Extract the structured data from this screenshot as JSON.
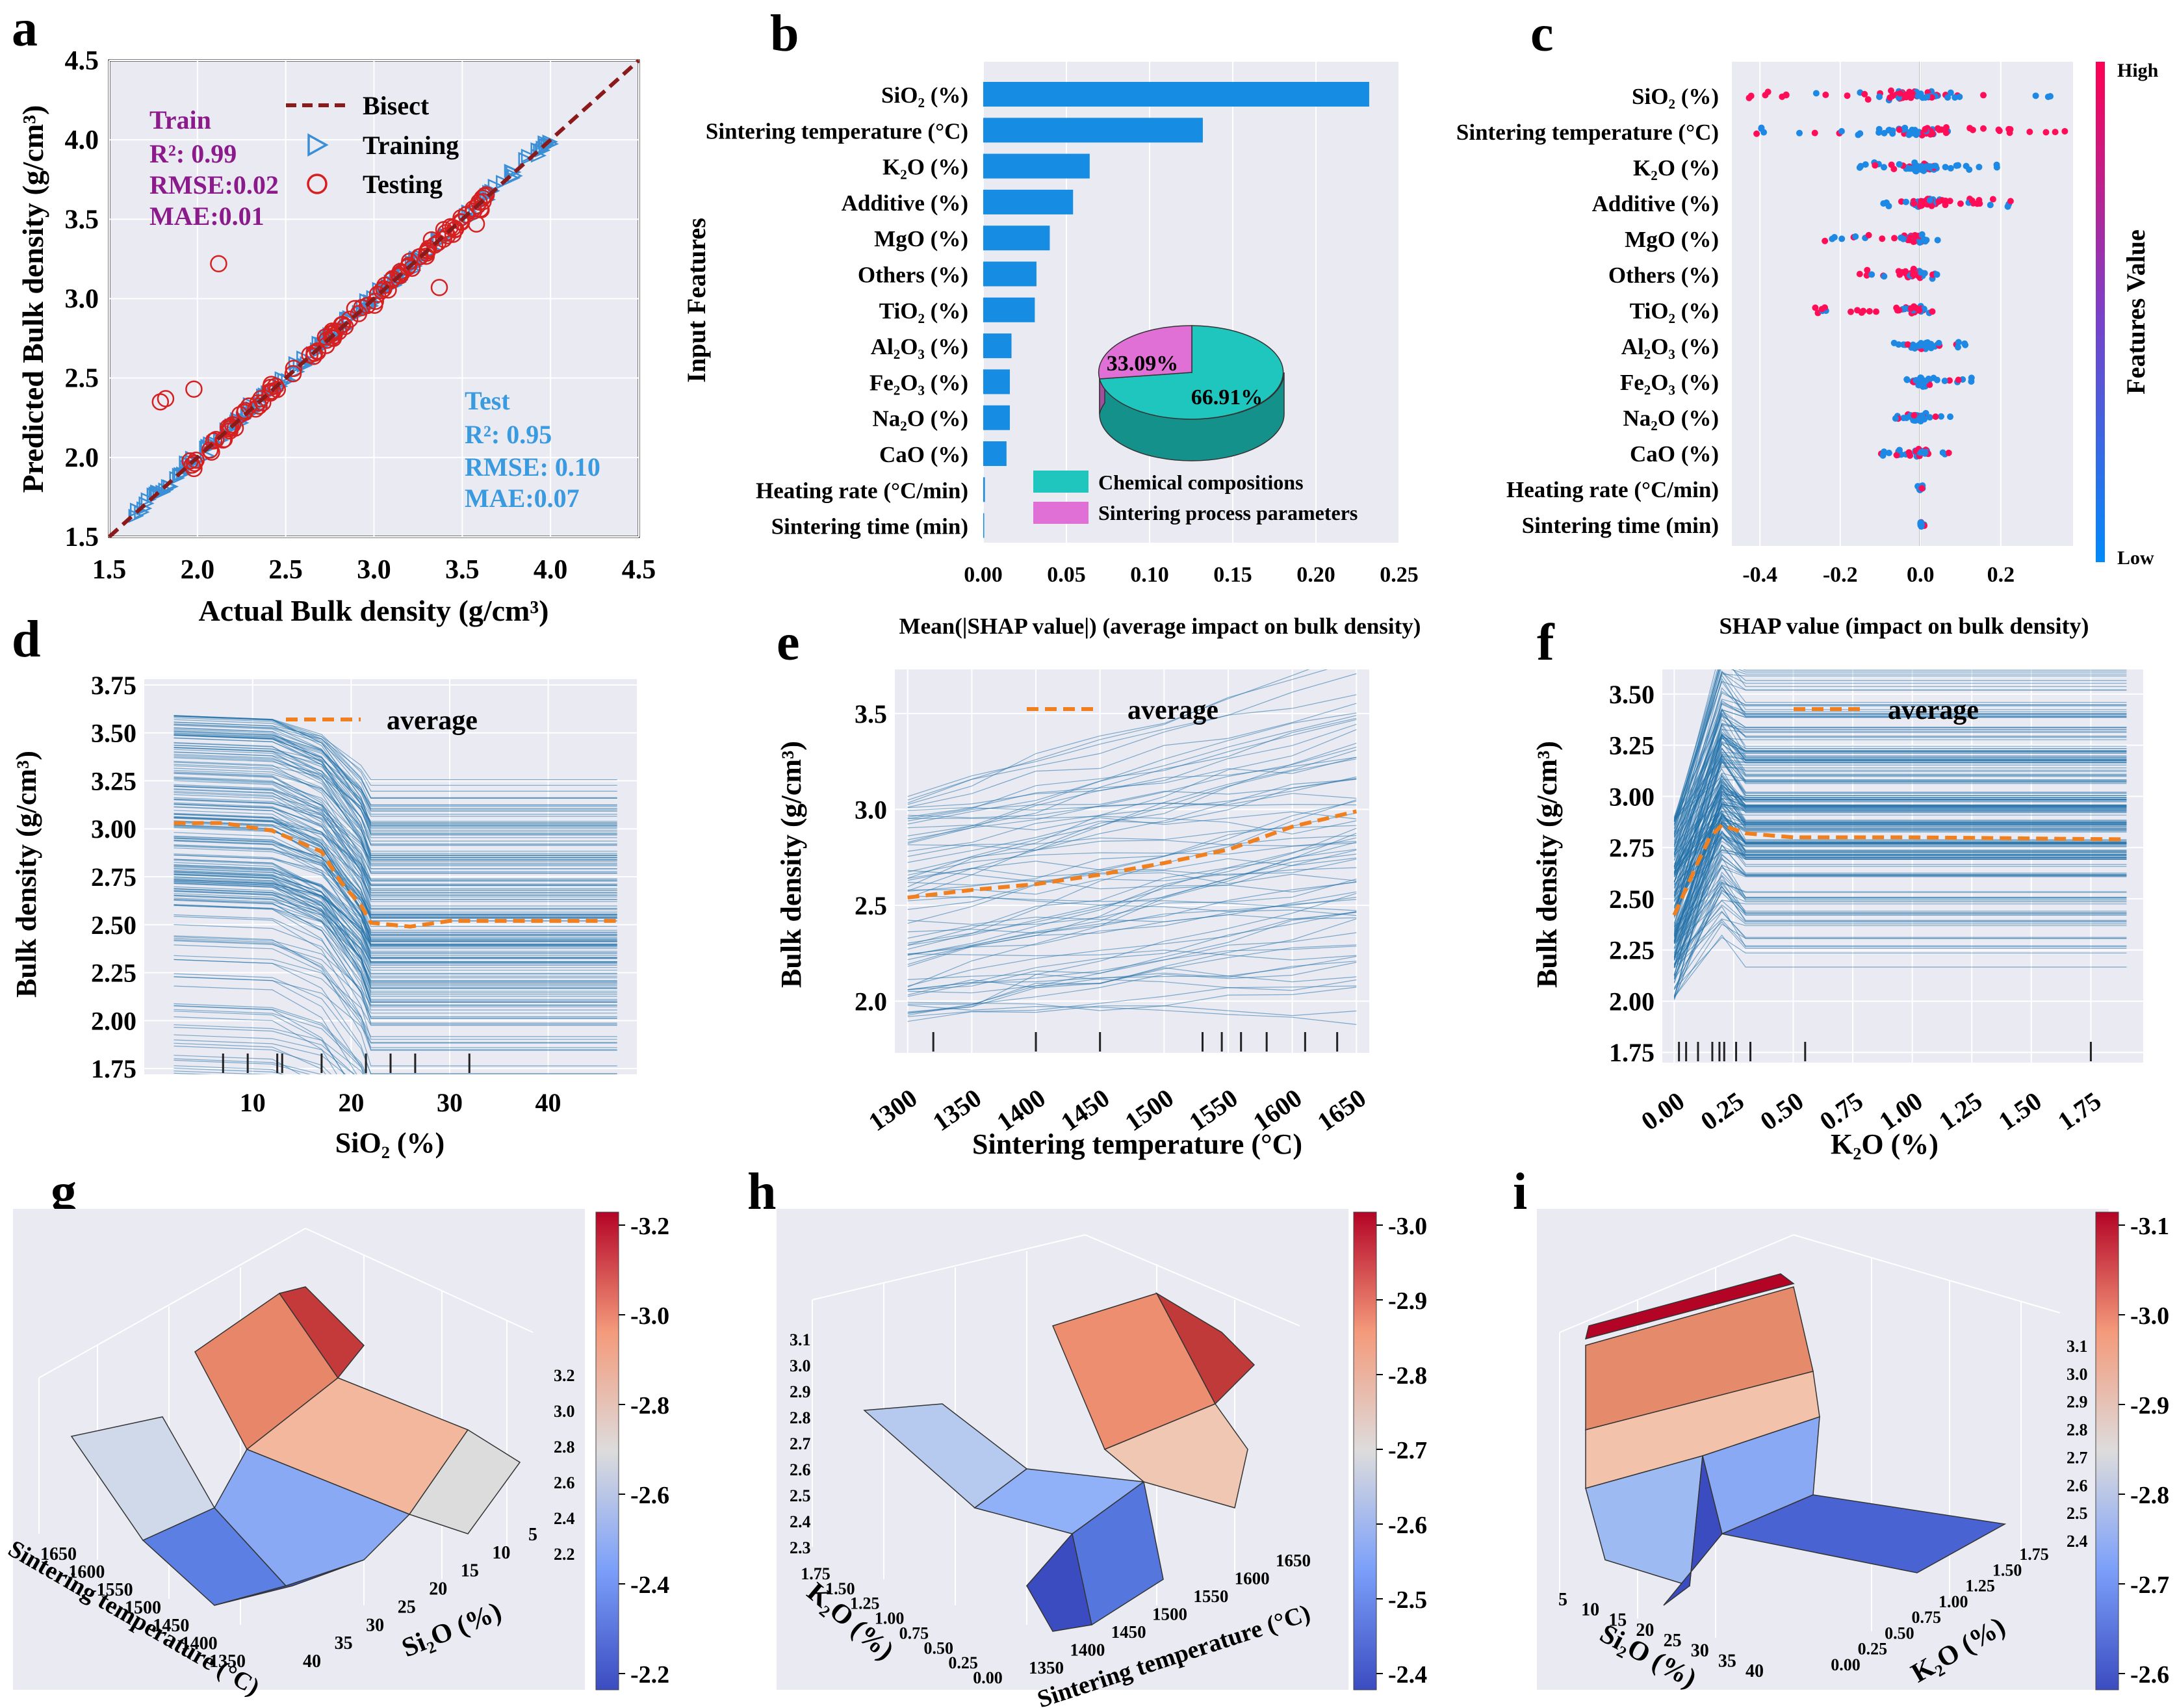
{
  "chart_data": [
    {
      "panel": "a",
      "type": "scatter",
      "xlabel": "Actual Bulk density (g/cm³)",
      "ylabel": "Predicted Bulk density (g/cm³)",
      "xlim": [
        1.5,
        4.5
      ],
      "ylim": [
        1.5,
        4.5
      ],
      "ticks": [
        "1.5",
        "2.0",
        "2.5",
        "3.0",
        "3.5",
        "4.0",
        "4.5"
      ],
      "legend": [
        "Bisect",
        "Training",
        "Testing"
      ],
      "train_text": [
        "Train",
        "R²: 0.99",
        "RMSE:0.02",
        "MAE:0.01"
      ],
      "test_text": [
        "Test",
        "R²: 0.95",
        "RMSE: 0.10",
        "MAE:0.07"
      ],
      "outliers": [
        [
          2.12,
          3.22
        ],
        [
          1.82,
          2.37
        ],
        [
          1.79,
          2.35
        ],
        [
          1.98,
          2.43
        ],
        [
          3.37,
          3.07
        ],
        [
          3.58,
          3.47
        ],
        [
          1.98,
          1.93
        ]
      ]
    },
    {
      "panel": "b",
      "type": "bar",
      "xlabel": "Mean(|SHAP value|) (average impact on bulk density)",
      "ylabel": "Input Features",
      "categories": [
        "SiO₂ (%)",
        "Sintering temperature (°C)",
        "K₂O (%)",
        "Additive (%)",
        "MgO (%)",
        "Others (%)",
        "TiO₂ (%)",
        "Al₂O₃ (%)",
        "Fe₂O₃ (%)",
        "Na₂O (%)",
        "CaO (%)",
        "Heating rate (°C/min)",
        "Sintering time (min)"
      ],
      "values": [
        0.232,
        0.132,
        0.064,
        0.054,
        0.04,
        0.032,
        0.031,
        0.017,
        0.016,
        0.016,
        0.014,
        0.001,
        0.0
      ],
      "xlim": [
        0,
        0.25
      ],
      "ticks": [
        "0.00",
        "0.05",
        "0.10",
        "0.15",
        "0.20",
        "0.25"
      ],
      "pie": [
        {
          "label": "Chemical compositions",
          "value": 66.91,
          "text": "66.91%",
          "color": "#1fc6bd"
        },
        {
          "label": "Sintering process parameters",
          "value": 33.09,
          "text": "33.09%",
          "color": "#e06fd6"
        }
      ]
    },
    {
      "panel": "c",
      "type": "scatter",
      "subtype": "beeswarm",
      "xlabel": "SHAP value (impact on bulk density)",
      "features": [
        "SiO₂ (%)",
        "Sintering temperature (°C)",
        "K₂O (%)",
        "Additive (%)",
        "MgO (%)",
        "Others (%)",
        "TiO₂ (%)",
        "Al₂O₃ (%)",
        "Fe₂O₃ (%)",
        "Na₂O (%)",
        "CaO (%)",
        "Heating rate (°C/min)",
        "Sintering time (min)"
      ],
      "spread": [
        [
          -0.45,
          0.33
        ],
        [
          -0.43,
          0.36
        ],
        [
          -0.17,
          0.2
        ],
        [
          -0.1,
          0.23
        ],
        [
          -0.24,
          0.06
        ],
        [
          -0.16,
          0.05
        ],
        [
          -0.27,
          0.05
        ],
        [
          -0.07,
          0.12
        ],
        [
          -0.07,
          0.13
        ],
        [
          -0.07,
          0.08
        ],
        [
          -0.1,
          0.08
        ],
        [
          -0.01,
          0.02
        ],
        [
          0.0,
          0.01
        ]
      ],
      "xlim": [
        -0.47,
        0.38
      ],
      "ticks": [
        "-0.4",
        "-0.2",
        "0.0",
        "0.2"
      ],
      "colorbar": {
        "label": "Features Value",
        "high": "High",
        "low": "Low"
      }
    },
    {
      "panel": "d",
      "type": "line",
      "xlabel": "SiO₂ (%)",
      "ylabel": "Bulk density (g/cm³)",
      "legend": "average",
      "x": [
        2,
        7,
        12,
        17,
        19,
        21,
        22,
        26,
        30,
        47
      ],
      "average": [
        3.03,
        3.03,
        2.99,
        2.88,
        2.72,
        2.6,
        2.51,
        2.49,
        2.52,
        2.52
      ],
      "xlim": [
        -1,
        49
      ],
      "ylim": [
        1.72,
        3.78
      ],
      "xticks": [
        "10",
        "20",
        "30",
        "40"
      ],
      "yticks": [
        "1.75",
        "2.00",
        "2.25",
        "2.50",
        "2.75",
        "3.00",
        "3.25",
        "3.50",
        "3.75"
      ]
    },
    {
      "panel": "e",
      "type": "line",
      "xlabel": "Sintering temperature (°C)",
      "ylabel": "Bulk density (g/cm³)",
      "legend": "average",
      "x": [
        1300,
        1350,
        1400,
        1450,
        1500,
        1550,
        1600,
        1650
      ],
      "average": [
        2.54,
        2.58,
        2.61,
        2.66,
        2.72,
        2.79,
        2.91,
        2.99
      ],
      "xlim": [
        1290,
        1660
      ],
      "ylim": [
        1.73,
        3.73
      ],
      "xticks": [
        "1300",
        "1350",
        "1400",
        "1450",
        "1500",
        "1550",
        "1600",
        "1650"
      ],
      "yticks": [
        "2.0",
        "2.5",
        "3.0",
        "3.5"
      ]
    },
    {
      "panel": "f",
      "type": "line",
      "xlabel": "K₂O (%)",
      "ylabel": "Bulk density (g/cm³)",
      "legend": "average",
      "x": [
        0.0,
        0.05,
        0.1,
        0.15,
        0.2,
        0.3,
        0.5,
        1.0,
        1.9
      ],
      "average": [
        2.42,
        2.55,
        2.68,
        2.8,
        2.86,
        2.82,
        2.8,
        2.8,
        2.79
      ],
      "xlim": [
        -0.05,
        1.97
      ],
      "ylim": [
        1.7,
        3.62
      ],
      "xticks": [
        "0.00",
        "0.25",
        "0.50",
        "0.75",
        "1.00",
        "1.25",
        "1.50",
        "1.75"
      ],
      "yticks": [
        "1.75",
        "2.00",
        "2.25",
        "2.50",
        "2.75",
        "3.00",
        "3.25",
        "3.50"
      ]
    },
    {
      "panel": "g",
      "type": "heatmap",
      "subtype": "3d-surface",
      "axes": [
        "Sintering temperature (°C)",
        "Si₂O (%)"
      ],
      "ticks_temp": [
        "1650",
        "1600",
        "1550",
        "1500",
        "1450",
        "1400",
        "1350"
      ],
      "ticks_si": [
        "40",
        "35",
        "30",
        "25",
        "20",
        "15",
        "10",
        "5"
      ],
      "ticks_z": [
        "3.2",
        "3.0",
        "2.8",
        "2.6",
        "2.4",
        "2.2"
      ],
      "colorbar_ticks": [
        "-3.2",
        "-3.0",
        "-2.8",
        "-2.6",
        "-2.4",
        "-2.2"
      ]
    },
    {
      "panel": "h",
      "type": "heatmap",
      "subtype": "3d-surface",
      "axes": [
        "K₂O (%)",
        "Sintering temperature (°C)"
      ],
      "ticks_k": [
        "1.75",
        "1.50",
        "1.25",
        "1.00",
        "0.75",
        "0.50",
        "0.25",
        "0.00"
      ],
      "ticks_temp": [
        "1350",
        "1400",
        "1450",
        "1500",
        "1550",
        "1600",
        "1650"
      ],
      "ticks_z": [
        "3.1",
        "3.0",
        "2.9",
        "2.8",
        "2.7",
        "2.6",
        "2.5",
        "2.4",
        "2.3"
      ],
      "colorbar_ticks": [
        "-3.0",
        "-2.9",
        "-2.8",
        "-2.7",
        "-2.6",
        "-2.5",
        "-2.4"
      ]
    },
    {
      "panel": "i",
      "type": "heatmap",
      "subtype": "3d-surface",
      "axes": [
        "Si₂O (%)",
        "K₂O (%)"
      ],
      "ticks_si": [
        "5",
        "10",
        "15",
        "20",
        "25",
        "30",
        "35",
        "40"
      ],
      "ticks_k": [
        "0.00",
        "0.25",
        "0.50",
        "0.75",
        "1.00",
        "1.25",
        "1.50",
        "1.75"
      ],
      "ticks_z": [
        "3.1",
        "3.0",
        "2.9",
        "2.8",
        "2.7",
        "2.6",
        "2.5",
        "2.4"
      ],
      "colorbar_ticks": [
        "-3.1",
        "-3.0",
        "-2.9",
        "-2.8",
        "-2.7",
        "-2.6"
      ]
    }
  ],
  "panel_letters": [
    "a",
    "b",
    "c",
    "d",
    "e",
    "f",
    "g",
    "h",
    "i"
  ],
  "colors": {
    "train": "#3a8fd6",
    "test": "#d62020",
    "bisect": "#8b1a1a",
    "bar": "#168de2",
    "lines": "#1f6fa8",
    "average": "#f07f1f",
    "panel_bg": "#eaeaf2",
    "train_text": "#8b1a8b",
    "test_text": "#3a9ae0"
  }
}
